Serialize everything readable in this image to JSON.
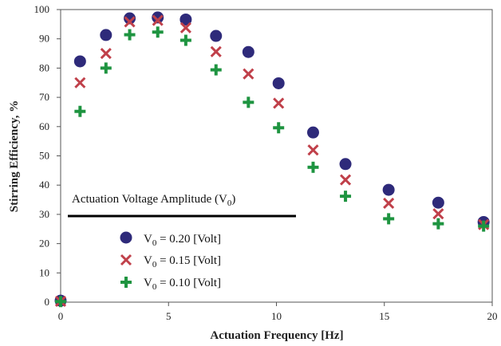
{
  "chart_data": {
    "type": "scatter",
    "xlabel": "Actuation Frequency [Hz]",
    "ylabel": "Stirring Efficiency, %",
    "xlim": [
      0,
      20
    ],
    "ylim": [
      0,
      100
    ],
    "xticks": [
      "0",
      "5",
      "10",
      "15",
      "20"
    ],
    "yticks": [
      "0",
      "10",
      "20",
      "30",
      "40",
      "50",
      "60",
      "70",
      "80",
      "90",
      "100"
    ],
    "grid": false,
    "legend": {
      "title": "Actuation  Voltage  Amplitude  (V",
      "title_sub": "0",
      "title_end": ")",
      "placement": "bottom-left"
    },
    "series": [
      {
        "name": "V0 = 0.20 [Volt]",
        "label_main": "V",
        "label_sub": "0",
        "label_rest": " = 0.20 [Volt]",
        "marker": "circle",
        "color": "#2e2a7a",
        "x": [
          0,
          0.9,
          2.1,
          3.2,
          4.5,
          5.8,
          7.2,
          8.7,
          10.1,
          11.7,
          13.2,
          15.2,
          17.5,
          19.6
        ],
        "y": [
          0.5,
          82.3,
          91.3,
          97,
          97.3,
          96.6,
          91,
          85.5,
          74.8,
          58,
          47.2,
          38.4,
          34,
          27.4
        ]
      },
      {
        "name": "V0 = 0.15 [Volt]",
        "label_main": "V",
        "label_sub": "0",
        "label_rest": " = 0.15 [Volt]",
        "marker": "x",
        "color": "#c0404a",
        "x": [
          0,
          0.9,
          2.1,
          3.2,
          4.5,
          5.8,
          7.2,
          8.7,
          10.1,
          11.7,
          13.2,
          15.2,
          17.5,
          19.6
        ],
        "y": [
          0.3,
          75,
          85,
          95.8,
          96.3,
          93.8,
          85.6,
          78,
          68,
          52,
          41.8,
          33.8,
          30.2,
          26.5
        ]
      },
      {
        "name": "V0 = 0.10 [Volt]",
        "label_main": "V",
        "label_sub": "0",
        "label_rest": " = 0.10 [Volt]",
        "marker": "plus",
        "color": "#1e9440",
        "x": [
          0,
          0.9,
          2.1,
          3.2,
          4.5,
          5.8,
          7.2,
          8.7,
          10.1,
          11.7,
          13.2,
          15.2,
          17.5,
          19.6
        ],
        "y": [
          0.2,
          65.2,
          80,
          91.4,
          92.3,
          89.5,
          79.4,
          68.3,
          59.6,
          46.1,
          36.2,
          28.5,
          26.8,
          26
        ]
      }
    ]
  }
}
